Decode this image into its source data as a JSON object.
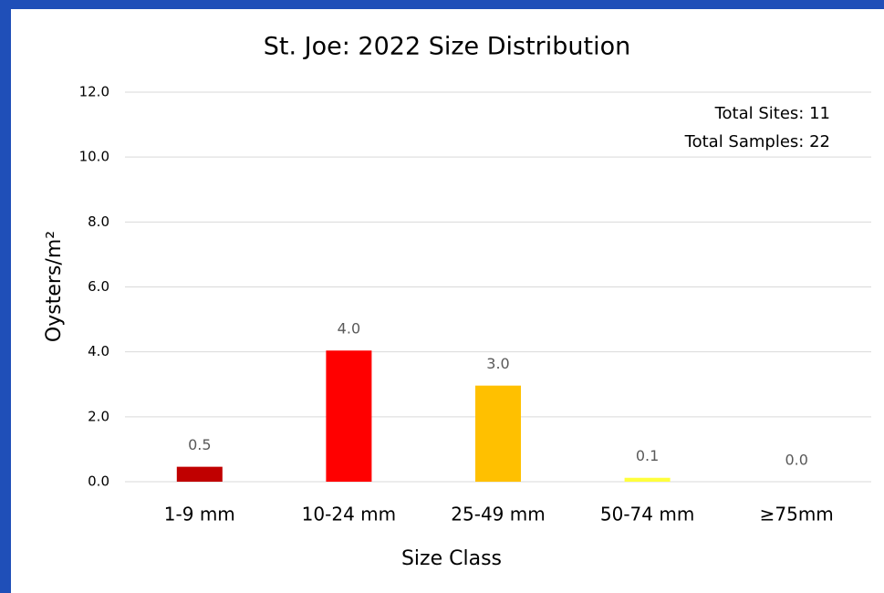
{
  "chart_data": {
    "type": "bar",
    "title": "St. Joe: 2022 Size Distribution",
    "x_label": "Size Class",
    "y_label": "Oysters/m²",
    "annotations": [
      "Total Sites: 11",
      "Total Samples: 22"
    ],
    "categories": [
      "1-9 mm",
      "10-24 mm",
      "25-49 mm",
      "50-74 mm",
      "≥75mm"
    ],
    "values": [
      0.46,
      4.04,
      2.96,
      0.12,
      0.0
    ],
    "value_labels": [
      "0.5",
      "4.0",
      "3.0",
      "0.1",
      "0.0"
    ],
    "colors": [
      "#c00000",
      "#ff0000",
      "#ffc000",
      "#ffff3c",
      "#7f7f7f"
    ],
    "ylim": [
      0,
      12
    ],
    "yticks": [
      {
        "value": 0,
        "label": "0.0"
      },
      {
        "value": 2,
        "label": "2.0"
      },
      {
        "value": 4,
        "label": "4.0"
      },
      {
        "value": 6,
        "label": "6.0"
      },
      {
        "value": 8,
        "label": "8.0"
      },
      {
        "value": 10,
        "label": "10.0"
      },
      {
        "value": 12,
        "label": "12.0"
      }
    ],
    "grid": true
  }
}
